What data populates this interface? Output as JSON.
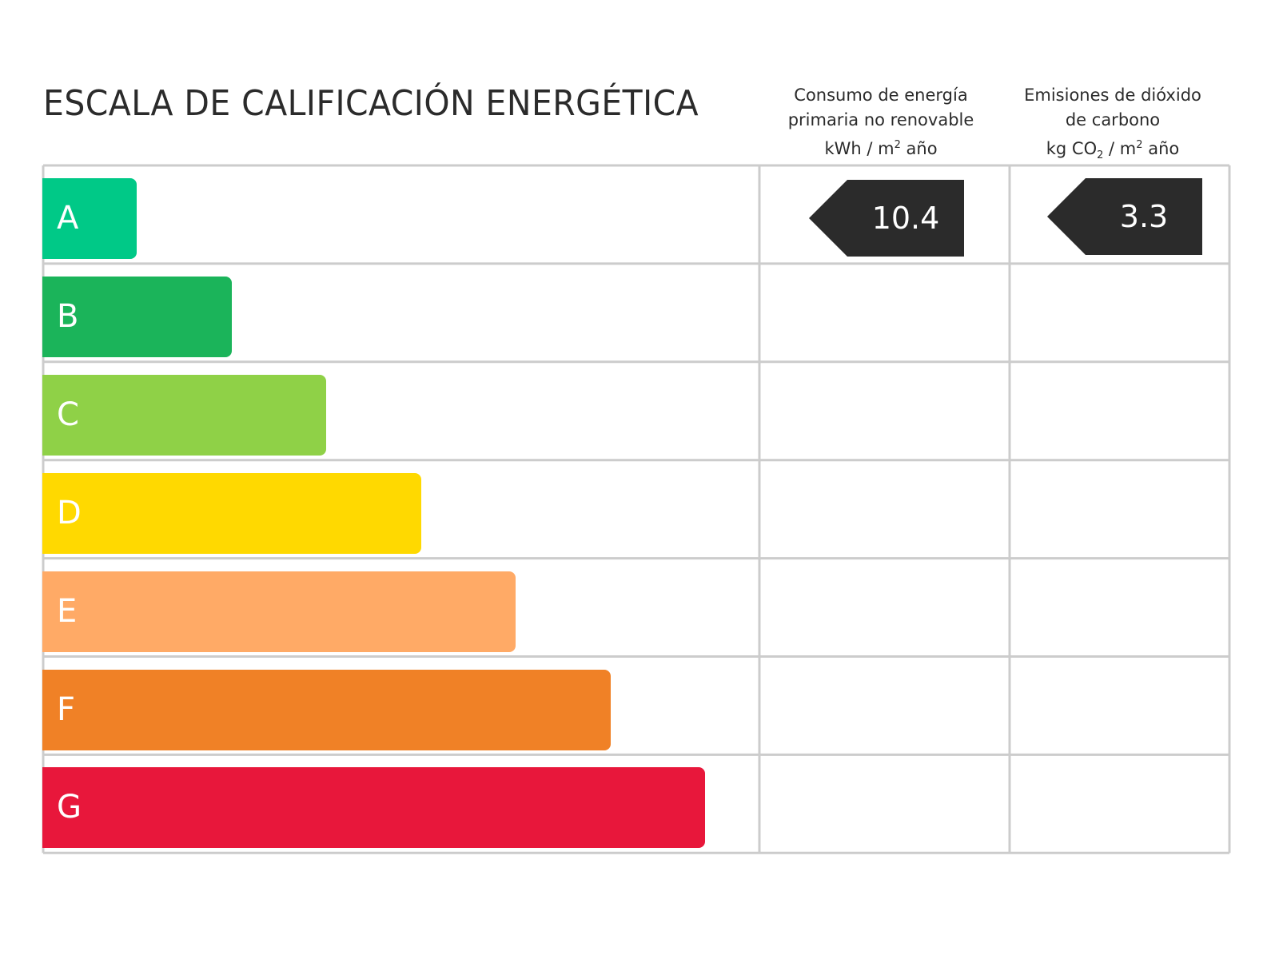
{
  "title": "ESCALA DE CALIFICACIÓN ENERGÉTICA",
  "columns": [
    {
      "lines": [
        "Consumo de energía",
        "primaria no renovable"
      ],
      "unit_pre": "kWh / m",
      "unit_sup": "2",
      "unit_post": " año"
    },
    {
      "lines": [
        "Emisiones de dióxido",
        "de carbono"
      ],
      "unit_pre": "kg CO",
      "unit_sub": "2",
      "unit_mid": " / m",
      "unit_sup": "2",
      "unit_post": " año"
    }
  ],
  "ratings": [
    {
      "label": "A",
      "color": "#00c987"
    },
    {
      "label": "B",
      "color": "#1bb45a"
    },
    {
      "label": "C",
      "color": "#8fd147"
    },
    {
      "label": "D",
      "color": "#ffd900"
    },
    {
      "label": "E",
      "color": "#ffaa66"
    },
    {
      "label": "F",
      "color": "#f08126"
    },
    {
      "label": "G",
      "color": "#e8173b"
    }
  ],
  "values": {
    "energy": {
      "rating": "A",
      "value": "10.4"
    },
    "co2": {
      "rating": "A",
      "value": "3.3"
    }
  },
  "colors": {
    "grid": "#cccccc",
    "indicator": "#2b2b2b"
  }
}
